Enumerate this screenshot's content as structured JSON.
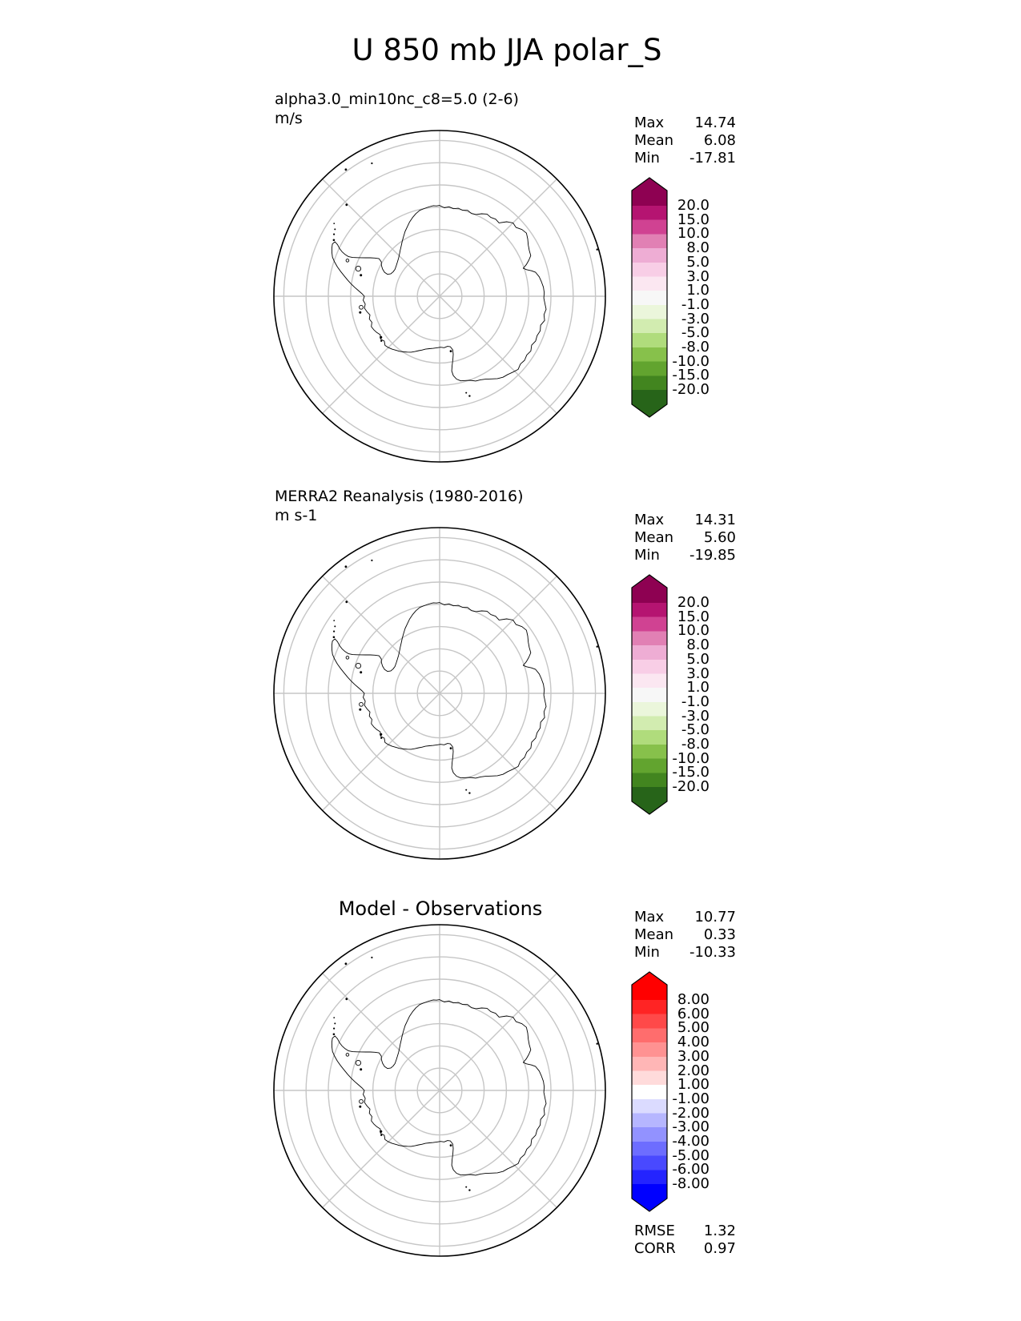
{
  "figure": {
    "title": "U 850 mb JJA polar_S",
    "background_color": "#ffffff"
  },
  "panels": [
    {
      "id": "model",
      "label_line1": "alpha3.0_min10nc_c8=5.0 (2-6)",
      "label_line2": "m/s",
      "stats": [
        {
          "label": "Max",
          "value": "14.74"
        },
        {
          "label": "Mean",
          "value": "6.08"
        },
        {
          "label": "Min",
          "value": "-17.81"
        }
      ],
      "colorbar": {
        "tick_labels": [
          "20.0",
          "15.0",
          "10.0",
          "8.0",
          "5.0",
          "3.0",
          "1.0",
          "-1.0",
          "-3.0",
          "-5.0",
          "-8.0",
          "-10.0",
          "-15.0",
          "-20.0"
        ],
        "segment_colors_top_to_bottom": [
          "#8e0152",
          "#b51471",
          "#d04292",
          "#e180b4",
          "#eeadd4",
          "#f8cee6",
          "#fbe7f1",
          "#f7f7f7",
          "#ebf6db",
          "#d2ecb0",
          "#b0dc7c",
          "#87c14b",
          "#62a42f",
          "#42851f",
          "#276419"
        ]
      }
    },
    {
      "id": "reference",
      "label_line1": "MERRA2 Reanalysis (1980-2016)",
      "label_line2": "m s-1",
      "stats": [
        {
          "label": "Max",
          "value": "14.31"
        },
        {
          "label": "Mean",
          "value": "5.60"
        },
        {
          "label": "Min",
          "value": "-19.85"
        }
      ],
      "colorbar": {
        "tick_labels": [
          "20.0",
          "15.0",
          "10.0",
          "8.0",
          "5.0",
          "3.0",
          "1.0",
          "-1.0",
          "-3.0",
          "-5.0",
          "-8.0",
          "-10.0",
          "-15.0",
          "-20.0"
        ],
        "segment_colors_top_to_bottom": [
          "#8e0152",
          "#b51471",
          "#d04292",
          "#e180b4",
          "#eeadd4",
          "#f8cee6",
          "#fbe7f1",
          "#f7f7f7",
          "#ebf6db",
          "#d2ecb0",
          "#b0dc7c",
          "#87c14b",
          "#62a42f",
          "#42851f",
          "#276419"
        ]
      }
    },
    {
      "id": "difference",
      "panel_title": "Model - Observations",
      "stats": [
        {
          "label": "Max",
          "value": "10.77"
        },
        {
          "label": "Mean",
          "value": "0.33"
        },
        {
          "label": "Min",
          "value": "-10.33"
        }
      ],
      "extra_stats": [
        {
          "label": "RMSE",
          "value": "1.32"
        },
        {
          "label": "CORR",
          "value": "0.97"
        }
      ],
      "colorbar": {
        "tick_labels": [
          "8.00",
          "6.00",
          "5.00",
          "4.00",
          "3.00",
          "2.00",
          "1.00",
          "-1.00",
          "-2.00",
          "-3.00",
          "-4.00",
          "-5.00",
          "-6.00",
          "-8.00"
        ],
        "segment_colors_top_to_bottom": [
          "#ff0000",
          "#ff2424",
          "#ff4949",
          "#ff6d6d",
          "#ff9292",
          "#ffb6b6",
          "#ffdbdb",
          "#ffffff",
          "#dbdbff",
          "#b6b6ff",
          "#9292ff",
          "#6d6dff",
          "#4949ff",
          "#2424ff",
          "#0000ff"
        ]
      }
    }
  ],
  "map_style": {
    "gridline_color": "#c6c6c6",
    "coastline_color": "#000000",
    "boundary_color": "#000000"
  },
  "chart_data": [
    {
      "type": "heatmap",
      "title": "alpha3.0_min10nc_c8=5.0 (2-6)",
      "units": "m/s",
      "projection": "south polar (Antarctica), latitude rings every 5 deg, longitude spokes every 45 deg",
      "stats": {
        "max": 14.74,
        "mean": 6.08,
        "min": -17.81
      },
      "colorbar_levels": [
        -20.0,
        -15.0,
        -10.0,
        -8.0,
        -5.0,
        -3.0,
        -1.0,
        1.0,
        3.0,
        5.0,
        8.0,
        10.0,
        15.0,
        20.0
      ],
      "colormap": "pink-white-green diverging, extended arrows both ends",
      "note": "map interior unfilled; only coastlines and graticule are drawn"
    },
    {
      "type": "heatmap",
      "title": "MERRA2 Reanalysis (1980-2016)",
      "units": "m s-1",
      "projection": "south polar (Antarctica), latitude rings every 5 deg, longitude spokes every 45 deg",
      "stats": {
        "max": 14.31,
        "mean": 5.6,
        "min": -19.85
      },
      "colorbar_levels": [
        -20.0,
        -15.0,
        -10.0,
        -8.0,
        -5.0,
        -3.0,
        -1.0,
        1.0,
        3.0,
        5.0,
        8.0,
        10.0,
        15.0,
        20.0
      ],
      "colormap": "pink-white-green diverging, extended arrows both ends",
      "note": "map interior unfilled; only coastlines and graticule are drawn"
    },
    {
      "type": "heatmap",
      "title": "Model - Observations",
      "units": "",
      "projection": "south polar (Antarctica), latitude rings every 5 deg, longitude spokes every 45 deg",
      "stats": {
        "max": 10.77,
        "mean": 0.33,
        "min": -10.33,
        "rmse": 1.32,
        "corr": 0.97
      },
      "colorbar_levels": [
        -8.0,
        -6.0,
        -5.0,
        -4.0,
        -3.0,
        -2.0,
        -1.0,
        1.0,
        2.0,
        3.0,
        4.0,
        5.0,
        6.0,
        8.0
      ],
      "colormap": "red-white-blue diverging, extended arrows both ends",
      "note": "map interior unfilled; only coastlines and graticule are drawn"
    }
  ]
}
